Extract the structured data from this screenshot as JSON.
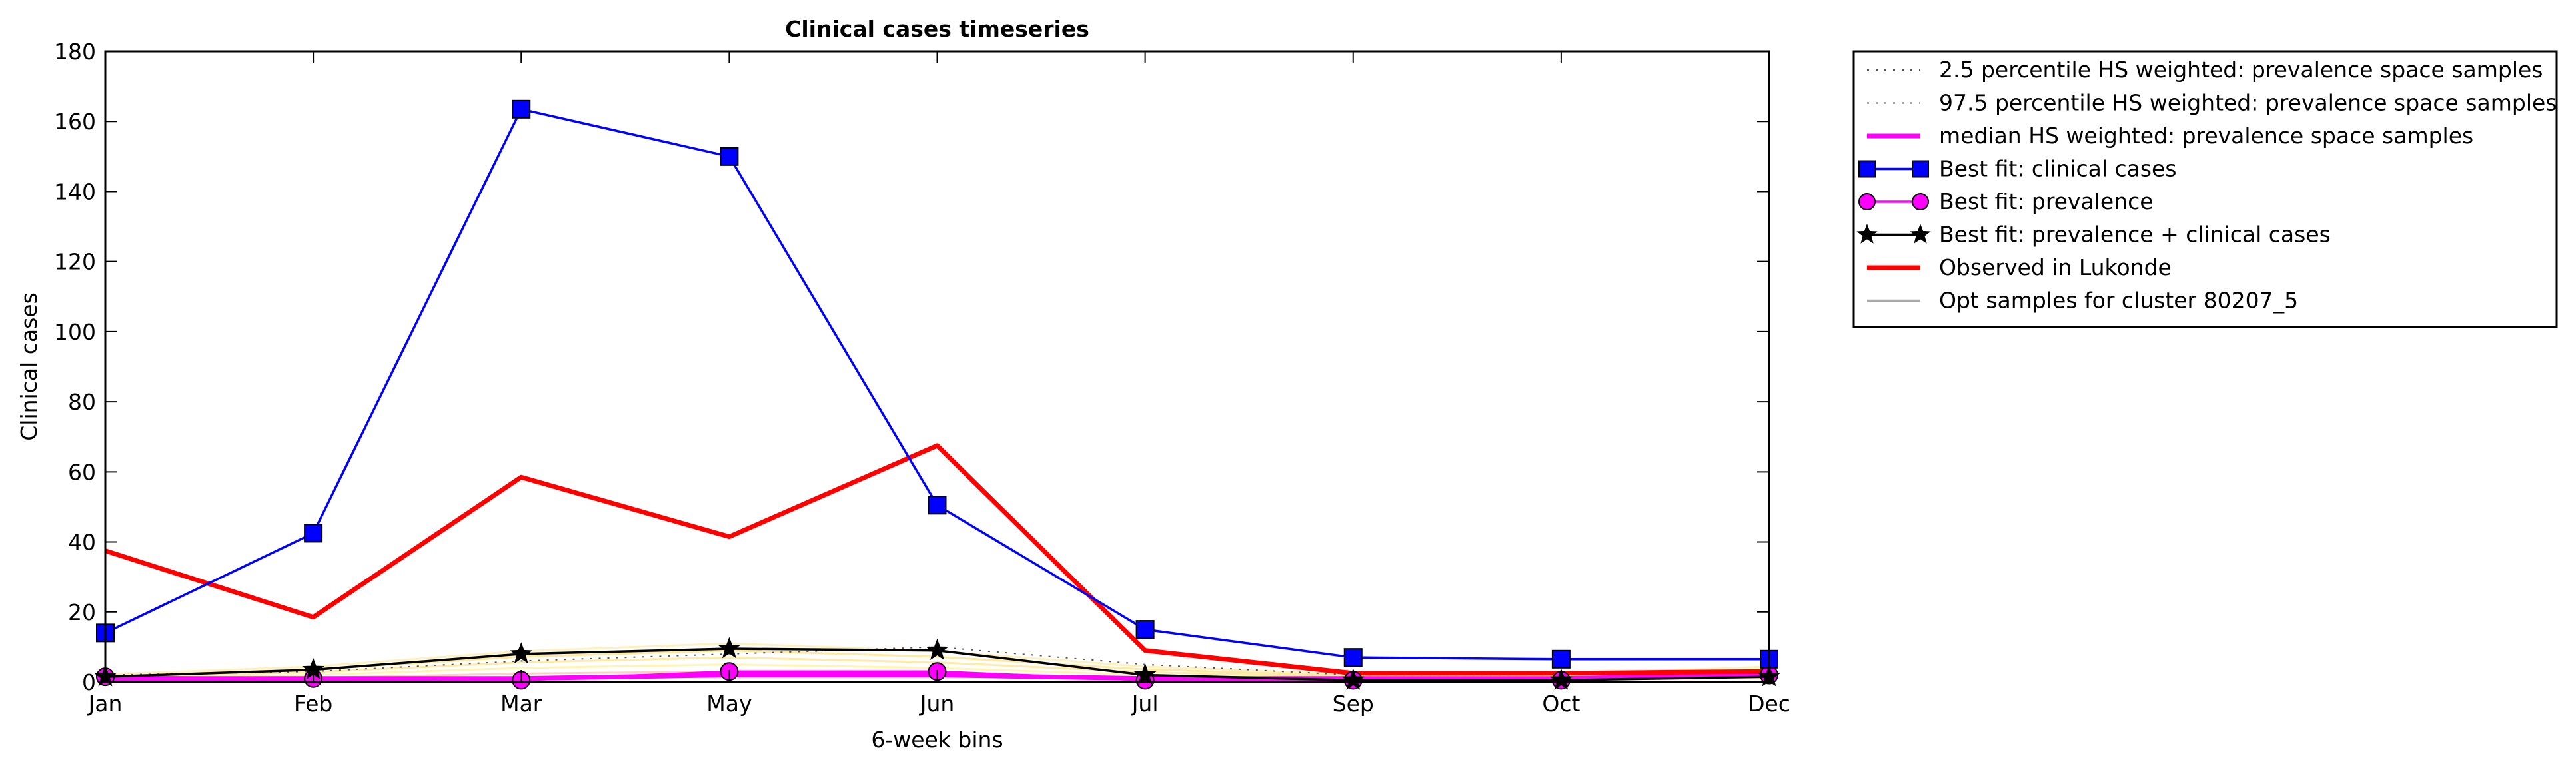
{
  "chart_data": {
    "type": "line",
    "title": "Clinical cases timeseries",
    "xlabel": "6-week bins",
    "ylabel": "Clinical cases",
    "ylim": [
      0,
      180
    ],
    "yticks": [
      0,
      20,
      40,
      60,
      80,
      100,
      120,
      140,
      160,
      180
    ],
    "categories": [
      "Jan",
      "Feb",
      "Mar",
      "May",
      "Jun",
      "Jul",
      "Sep",
      "Oct",
      "Dec"
    ],
    "grid": false,
    "legend_position": "outside-top-right",
    "series": [
      {
        "name": "2.5 percentile HS weighted: prevalence space samples",
        "color": "#555555",
        "style": "dotted",
        "marker": "none",
        "values": [
          0,
          0,
          0,
          0,
          0,
          0,
          0,
          0,
          0
        ]
      },
      {
        "name": "97.5 percentile HS weighted: prevalence space samples",
        "color": "#555555",
        "style": "dotted",
        "marker": "none",
        "values": [
          2,
          3,
          6,
          8,
          10,
          5,
          2,
          2,
          3
        ]
      },
      {
        "name": "median HS weighted: prevalence space samples",
        "color": "#ff00ff",
        "style": "solid-thick",
        "marker": "none",
        "values": [
          1,
          1,
          1,
          2,
          2,
          1,
          1,
          1,
          2
        ]
      },
      {
        "name": "Best fit: clinical cases",
        "color": "#0000ff",
        "style": "solid",
        "marker": "square",
        "values": [
          14,
          42.5,
          163.5,
          150,
          50.5,
          15,
          7,
          6.5,
          6.5
        ]
      },
      {
        "name": "Best fit: prevalence",
        "color": "#ff00ff",
        "style": "solid",
        "marker": "circle",
        "values": [
          1.5,
          1,
          0.5,
          3,
          3,
          0.5,
          0.5,
          0.5,
          2
        ]
      },
      {
        "name": "Best fit: prevalence + clinical cases",
        "color": "#000000",
        "style": "solid",
        "marker": "star",
        "values": [
          1.5,
          3.5,
          8,
          9.5,
          9,
          2,
          0.5,
          0.5,
          1.5
        ]
      },
      {
        "name": "Observed in Lukonde",
        "color": "#ff0000",
        "style": "solid-thick",
        "marker": "none",
        "values": [
          37.5,
          18.5,
          58.5,
          41.5,
          67.5,
          9,
          2.5,
          2.5,
          3
        ]
      },
      {
        "name": "Opt samples for cluster 80207_5",
        "color": "#aaaaaa",
        "style": "solid",
        "marker": "none",
        "values": [
          1,
          2,
          4,
          5,
          4,
          2,
          1,
          1,
          2
        ]
      }
    ]
  }
}
